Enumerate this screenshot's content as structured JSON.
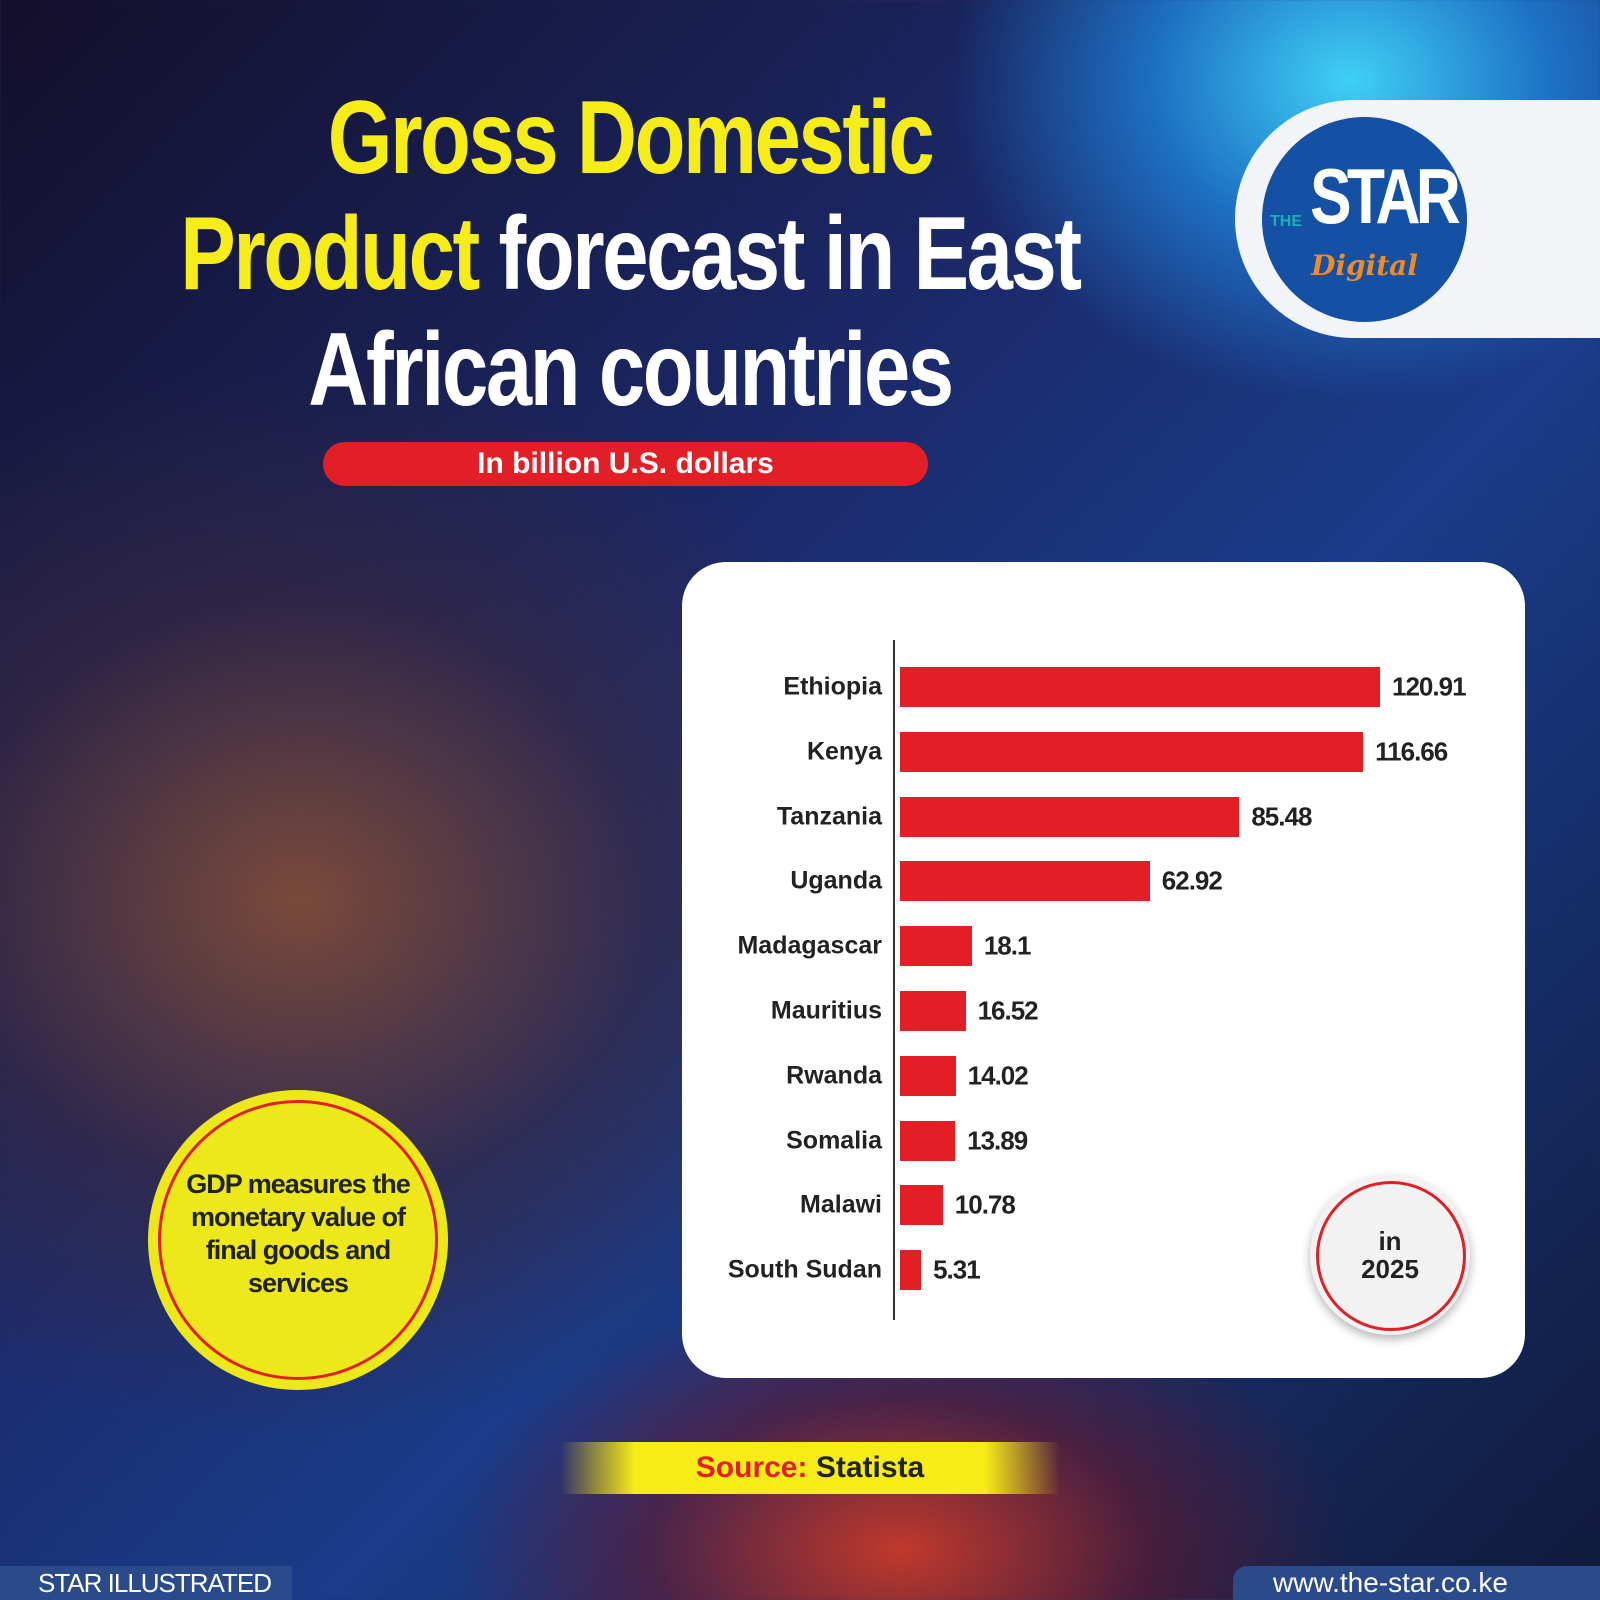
{
  "title": {
    "line1_highlight": "Gross Domestic",
    "line2_highlight": "Product",
    "line2_rest": "forecast in East",
    "line3": "African countries"
  },
  "subtitle": "In billion U.S. dollars",
  "logo": {
    "the": "THE",
    "star": "STAR",
    "digital": "Digital"
  },
  "badge": {
    "line1": "in",
    "line2": "2025"
  },
  "note": "GDP measures the monetary value of final goods and services",
  "source": {
    "label": "Source:",
    "value": "Statista"
  },
  "footer": {
    "left": "STAR ILLUSTRATED",
    "right": "www.the-star.co.ke"
  },
  "colors": {
    "bar": "#e21f26",
    "highlight": "#f5ec18"
  },
  "chart_data": {
    "type": "bar",
    "orientation": "horizontal",
    "title": "Gross Domestic Product forecast in East African countries",
    "xlabel": "In billion U.S. dollars",
    "categories": [
      "Ethiopia",
      "Kenya",
      "Tanzania",
      "Uganda",
      "Madagascar",
      "Mauritius",
      "Rwanda",
      "Somalia",
      "Malawi",
      "South Sudan"
    ],
    "values": [
      120.91,
      116.66,
      85.48,
      62.92,
      18.1,
      16.52,
      14.02,
      13.89,
      10.78,
      5.31
    ],
    "value_labels": [
      "120.91",
      "116.66",
      "85.48",
      "62.92",
      "18.1",
      "16.52",
      "14.02",
      "13.89",
      "10.78",
      "5.31"
    ],
    "xlim": [
      0,
      120.91
    ]
  }
}
